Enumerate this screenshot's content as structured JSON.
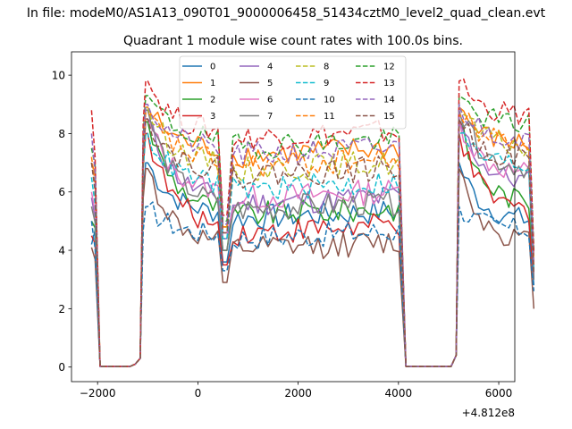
{
  "chart_data": {
    "type": "line",
    "suptitle": "In file: modeM0/AS1A13_090T01_9000006458_51434cztM0_level2_quad_clean.evt",
    "title": "Quadrant 1 module wise count rates with 100.0s bins.",
    "xlabel": "",
    "ylabel": "",
    "x_offset_label": "+4.812e8",
    "xlim": [
      -2520,
      6320
    ],
    "ylim": [
      -0.5,
      10.8
    ],
    "xticks": [
      -2000,
      0,
      2000,
      4000,
      6000
    ],
    "yticks": [
      0,
      2,
      4,
      6,
      8,
      10
    ],
    "xtick_labels": [
      "−2000",
      "0",
      "2000",
      "4000",
      "6000"
    ],
    "ytick_labels": [
      "0",
      "2",
      "4",
      "6",
      "8",
      "10"
    ],
    "legend_position": "upper center",
    "legend_columns": 4,
    "x": [
      -2120,
      -2050,
      -1950,
      -1850,
      -1750,
      -1650,
      -1550,
      -1450,
      -1350,
      -1250,
      -1150,
      -1090,
      -1040,
      -1000,
      -900,
      -800,
      -700,
      -600,
      -500,
      -400,
      -300,
      -200,
      -100,
      0,
      100,
      200,
      300,
      400,
      500,
      580,
      700,
      800,
      900,
      1000,
      1100,
      1200,
      1300,
      1400,
      1500,
      1600,
      1700,
      1800,
      1900,
      2000,
      2100,
      2200,
      2300,
      2400,
      2500,
      2600,
      2700,
      2800,
      2900,
      3000,
      3100,
      3200,
      3300,
      3400,
      3500,
      3600,
      3700,
      3800,
      3900,
      4010,
      4150,
      4250,
      4350,
      4450,
      4550,
      4650,
      4750,
      4850,
      4950,
      5050,
      5150,
      5210,
      5300,
      5400,
      5500,
      5600,
      5700,
      5800,
      5900,
      6000,
      6100,
      6200,
      6300,
      6400,
      6500,
      6600,
      6700
    ],
    "series": [
      {
        "name": "0",
        "color": "#1f77b4",
        "dash": "solid",
        "plateau": 5.2,
        "right_level": 5.0,
        "peak": 7.0,
        "dip": 3.6,
        "start": 4.2,
        "end": 2.8
      },
      {
        "name": "1",
        "color": "#ff7f0e",
        "dash": "solid",
        "plateau": 7.4,
        "right_level": 7.6,
        "peak": 8.9,
        "dip": 4.8,
        "start": 7.0,
        "end": 3.5
      },
      {
        "name": "2",
        "color": "#2ca02c",
        "dash": "solid",
        "plateau": 5.3,
        "right_level": 5.6,
        "peak": 8.4,
        "dip": 4.0,
        "start": 5.0,
        "end": 3.2
      },
      {
        "name": "3",
        "color": "#d62728",
        "dash": "solid",
        "plateau": 4.7,
        "right_level": 5.3,
        "peak": 8.0,
        "dip": 3.5,
        "start": 4.5,
        "end": 3.0
      },
      {
        "name": "4",
        "color": "#9467bd",
        "dash": "solid",
        "plateau": 5.7,
        "right_level": 6.3,
        "peak": 8.5,
        "dip": 4.4,
        "start": 5.8,
        "end": 3.0
      },
      {
        "name": "5",
        "color": "#8c564b",
        "dash": "solid",
        "plateau": 4.1,
        "right_level": 4.3,
        "peak": 6.8,
        "dip": 2.9,
        "start": 4.1,
        "end": 2.0
      },
      {
        "name": "6",
        "color": "#e377c2",
        "dash": "solid",
        "plateau": 5.9,
        "right_level": 6.6,
        "peak": 8.5,
        "dip": 4.6,
        "start": 6.0,
        "end": 3.2
      },
      {
        "name": "7",
        "color": "#7f7f7f",
        "dash": "solid",
        "plateau": 5.5,
        "right_level": 6.8,
        "peak": 8.8,
        "dip": 4.0,
        "start": 5.5,
        "end": 3.0
      },
      {
        "name": "8",
        "color": "#bcbd22",
        "dash": "dashed",
        "plateau": 6.9,
        "right_level": 7.5,
        "peak": 8.9,
        "dip": 4.8,
        "start": 7.0,
        "end": 3.8
      },
      {
        "name": "9",
        "color": "#17becf",
        "dash": "dashed",
        "plateau": 6.2,
        "right_level": 6.9,
        "peak": 8.0,
        "dip": 4.4,
        "start": 6.5,
        "end": 3.3
      },
      {
        "name": "10",
        "color": "#1f77b4",
        "dash": "dashed",
        "plateau": 4.5,
        "right_level": 4.7,
        "peak": 5.5,
        "dip": 3.3,
        "start": 5.0,
        "end": 2.6
      },
      {
        "name": "11",
        "color": "#ff7f0e",
        "dash": "dashed",
        "plateau": 7.0,
        "right_level": 7.7,
        "peak": 8.7,
        "dip": 4.8,
        "start": 7.2,
        "end": 3.8
      },
      {
        "name": "12",
        "color": "#2ca02c",
        "dash": "dashed",
        "plateau": 7.7,
        "right_level": 8.3,
        "peak": 9.3,
        "dip": 5.0,
        "start": 7.5,
        "end": 4.0
      },
      {
        "name": "13",
        "color": "#d62728",
        "dash": "dashed",
        "plateau": 8.0,
        "right_level": 8.6,
        "peak": 9.8,
        "dip": 5.2,
        "start": 8.8,
        "end": 3.9
      },
      {
        "name": "14",
        "color": "#9467bd",
        "dash": "dashed",
        "plateau": 7.4,
        "right_level": 7.8,
        "peak": 9.0,
        "dip": 4.9,
        "start": 8.0,
        "end": 3.5
      },
      {
        "name": "15",
        "color": "#8c564b",
        "dash": "dashed",
        "plateau": 6.7,
        "right_level": 7.1,
        "peak": 8.5,
        "dip": 4.6,
        "start": 7.0,
        "end": 3.2
      }
    ]
  }
}
